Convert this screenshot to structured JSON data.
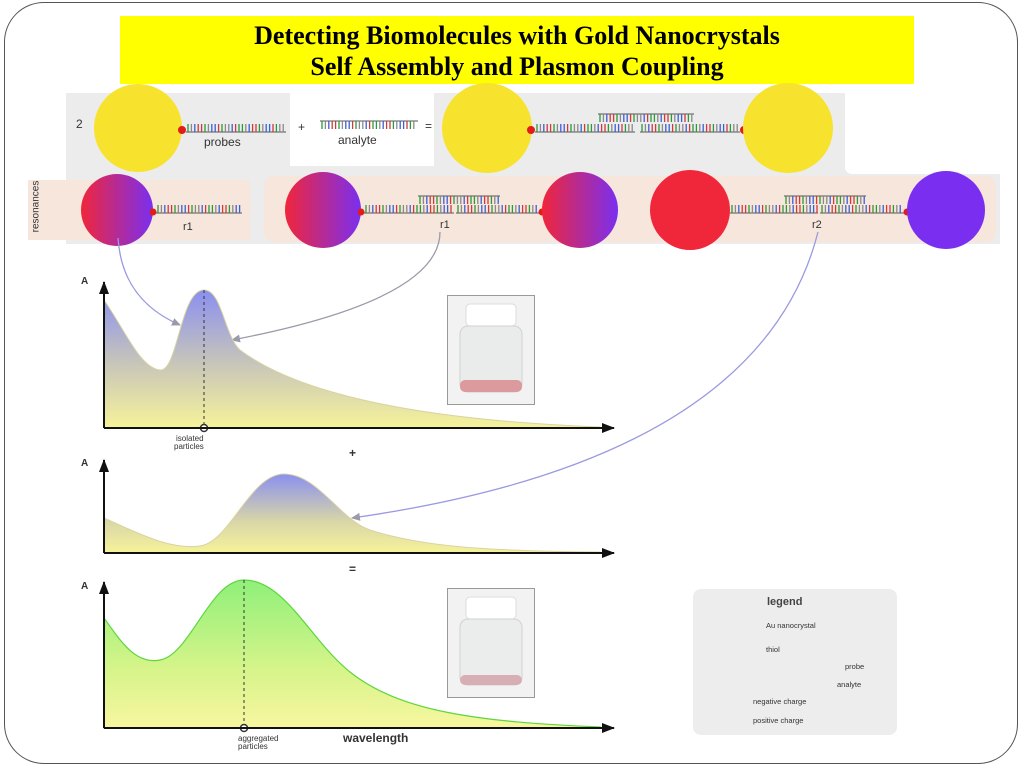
{
  "title": {
    "line1": "Detecting Biomolecules with Gold Nanocrystals",
    "line2": "Self Assembly and Plasmon Coupling"
  },
  "reaction": {
    "coefficient": "2",
    "probes_label": "probes",
    "plus": "+",
    "analyte_label": "analyte",
    "equals": "="
  },
  "resonances": {
    "side_label": "resonances",
    "r1_left": "r1",
    "r1_mid": "r1",
    "r2": "r2"
  },
  "plots": {
    "axis_label": "A",
    "isolated_label_1": "isolated",
    "isolated_label_2": "particles",
    "plus": "+",
    "equals": "=",
    "aggregated_label_1": "aggregated",
    "aggregated_label_2": "particles",
    "x_label": "wavelength"
  },
  "legend": {
    "title": "legend",
    "au": "Au nanocrystal",
    "thiol": "thiol",
    "probe": "probe",
    "analyte": "analyte",
    "negative": "negative charge",
    "positive": "positive charge"
  },
  "colors": {
    "title_bg": "#ffff00",
    "gold": "#f7e22e",
    "thiol": "#e21b1b",
    "negative": "#f0263a",
    "positive": "#7a2ff0",
    "isolated_peak": "#8a8ff0",
    "aggregated_fill": "#9ef07e"
  }
}
